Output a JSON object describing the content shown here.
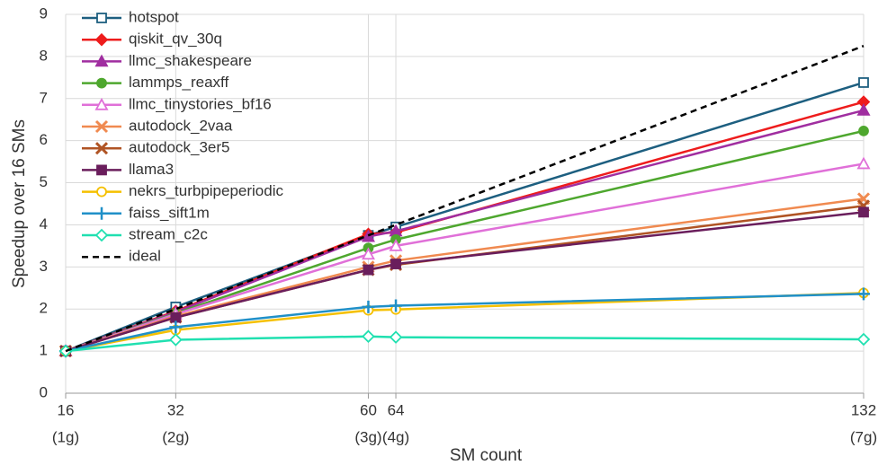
{
  "chart_data": {
    "type": "line",
    "x_label": "SM count",
    "y_label": "Speedup over 16 SMs",
    "x": [
      16,
      32,
      60,
      64,
      132
    ],
    "xticks": [
      16,
      32,
      60,
      64,
      132
    ],
    "xtick_groups": [
      "(1g)",
      "(2g)",
      "(3g)",
      "(4g)",
      "(7g)"
    ],
    "xlim": [
      16,
      132
    ],
    "ylim": [
      0,
      9
    ],
    "yticks": [
      0,
      1,
      2,
      3,
      4,
      5,
      6,
      7,
      8,
      9
    ],
    "grid": true,
    "legend": "top-left",
    "series": [
      {
        "name": "hotspot",
        "color": "#1d5f80",
        "marker": "square-open",
        "values": [
          1,
          2.05,
          3.75,
          3.95,
          7.38
        ]
      },
      {
        "name": "qiskit_qv_30q",
        "color": "#ee1c1c",
        "marker": "diamond",
        "values": [
          1,
          1.95,
          3.78,
          3.82,
          6.92
        ]
      },
      {
        "name": "llmc_shakespeare",
        "color": "#a02ea0",
        "marker": "triangle",
        "values": [
          1,
          1.93,
          3.72,
          3.85,
          6.72
        ]
      },
      {
        "name": "lammps_reaxff",
        "color": "#4ea72e",
        "marker": "circle",
        "values": [
          1,
          1.9,
          3.45,
          3.65,
          6.23
        ]
      },
      {
        "name": "llmc_tinystories_bf16",
        "color": "#e070d8",
        "marker": "triangle-open",
        "values": [
          1,
          1.88,
          3.3,
          3.5,
          5.45
        ]
      },
      {
        "name": "autodock_2vaa",
        "color": "#f08a50",
        "marker": "x",
        "values": [
          1,
          1.83,
          3.0,
          3.15,
          4.62
        ]
      },
      {
        "name": "autodock_3er5",
        "color": "#b05424",
        "marker": "x",
        "values": [
          1,
          1.8,
          2.93,
          3.05,
          4.45
        ]
      },
      {
        "name": "llama3",
        "color": "#6a1e5c",
        "marker": "square",
        "values": [
          1,
          1.8,
          2.93,
          3.07,
          4.3
        ]
      },
      {
        "name": "nekrs_turbpipeperiodic",
        "color": "#f5c000",
        "marker": "circle-open",
        "values": [
          1,
          1.5,
          1.97,
          1.99,
          2.38
        ]
      },
      {
        "name": "faiss_sift1m",
        "color": "#2090c8",
        "marker": "plus",
        "values": [
          1,
          1.57,
          2.05,
          2.08,
          2.36
        ]
      },
      {
        "name": "stream_c2c",
        "color": "#20e0b0",
        "marker": "diamond-open",
        "values": [
          1,
          1.27,
          1.35,
          1.33,
          1.28
        ]
      },
      {
        "name": "ideal",
        "color": "#000000",
        "marker": "none",
        "dash": true,
        "values": [
          1,
          2,
          3.75,
          4,
          8.25
        ]
      }
    ]
  }
}
